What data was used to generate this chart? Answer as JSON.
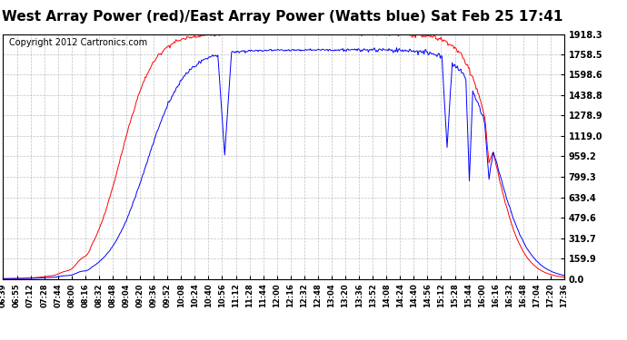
{
  "title": "West Array Power (red)/East Array Power (Watts blue) Sat Feb 25 17:41",
  "copyright": "Copyright 2012 Cartronics.com",
  "y_ticks": [
    0.0,
    159.9,
    319.7,
    479.6,
    639.4,
    799.3,
    959.2,
    1119.0,
    1278.9,
    1438.8,
    1598.6,
    1758.5,
    1918.3
  ],
  "x_labels": [
    "06:39",
    "06:55",
    "07:12",
    "07:28",
    "07:44",
    "08:00",
    "08:16",
    "08:32",
    "08:48",
    "09:04",
    "09:20",
    "09:36",
    "09:52",
    "10:08",
    "10:24",
    "10:40",
    "10:56",
    "11:12",
    "11:28",
    "11:44",
    "12:00",
    "12:16",
    "12:32",
    "12:48",
    "13:04",
    "13:20",
    "13:36",
    "13:52",
    "14:08",
    "14:24",
    "14:40",
    "14:56",
    "15:12",
    "15:28",
    "15:44",
    "16:00",
    "16:16",
    "16:32",
    "16:48",
    "17:04",
    "17:20",
    "17:36"
  ],
  "ymax": 1918.3,
  "ymin": 0.0,
  "bg_color": "#ffffff",
  "grid_color": "#b0b0b0",
  "red_color": "#ff0000",
  "blue_color": "#0000ff",
  "title_fontsize": 11,
  "copyright_fontsize": 7
}
